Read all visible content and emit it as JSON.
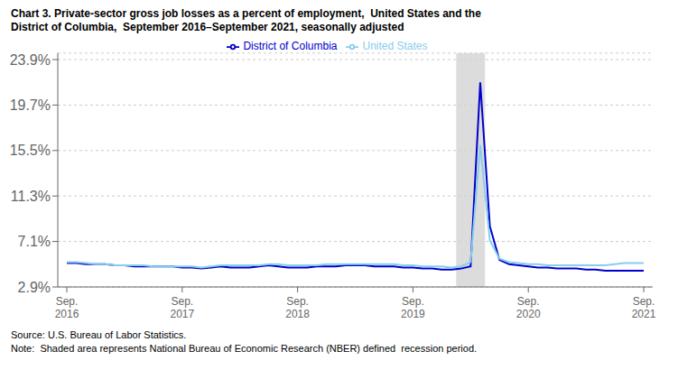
{
  "chart_data": {
    "type": "line",
    "title": "Chart 3. Private-sector gross job losses as a percent of employment,  United States and the\nDistrict of Columbia,  September 2016–September 2021, seasonally adjusted",
    "annotations": [
      "Source: U.S. Bureau of Labor Statistics.",
      "Note:  Shaded area represents National Bureau of Economic Research (NBER) defined  recession period."
    ],
    "categories": [
      "Sep.\n2016",
      null,
      null,
      null,
      null,
      null,
      null,
      null,
      null,
      null,
      null,
      null,
      "Sep.\n2017",
      null,
      null,
      null,
      null,
      null,
      null,
      null,
      null,
      null,
      null,
      null,
      "Sep.\n2018",
      null,
      null,
      null,
      null,
      null,
      null,
      null,
      null,
      null,
      null,
      null,
      "Sep.\n2019",
      null,
      null,
      null,
      null,
      null,
      null,
      null,
      null,
      null,
      null,
      null,
      "Sep.\n2020",
      null,
      null,
      null,
      null,
      null,
      null,
      null,
      null,
      null,
      null,
      null,
      "Sep.\n2021"
    ],
    "series": [
      {
        "name": "District of Columbia",
        "color": "#0000CD",
        "values": [
          5.1,
          5.1,
          5.0,
          5.0,
          5.0,
          4.9,
          4.9,
          4.8,
          4.8,
          4.8,
          4.8,
          4.8,
          4.7,
          4.7,
          4.6,
          4.7,
          4.8,
          4.7,
          4.7,
          4.7,
          4.8,
          4.9,
          4.8,
          4.7,
          4.7,
          4.7,
          4.8,
          4.8,
          4.8,
          4.9,
          4.9,
          4.9,
          4.8,
          4.8,
          4.8,
          4.7,
          4.7,
          4.6,
          4.6,
          4.5,
          4.5,
          4.6,
          4.8,
          21.8,
          8.5,
          5.4,
          5.0,
          4.9,
          4.8,
          4.7,
          4.7,
          4.6,
          4.6,
          4.6,
          4.5,
          4.5,
          4.4,
          4.4,
          4.4,
          4.4,
          4.4
        ]
      },
      {
        "name": "United States",
        "color": "#87CEEB",
        "values": [
          5.2,
          5.2,
          5.1,
          5.0,
          5.0,
          4.9,
          4.9,
          4.9,
          4.9,
          4.8,
          4.8,
          4.8,
          4.8,
          4.8,
          4.7,
          4.8,
          4.9,
          4.9,
          4.9,
          4.9,
          4.9,
          5.0,
          5.0,
          4.9,
          4.9,
          4.9,
          4.9,
          5.0,
          5.0,
          5.0,
          5.0,
          5.0,
          5.0,
          5.0,
          5.0,
          4.9,
          4.9,
          4.8,
          4.8,
          4.8,
          4.7,
          4.8,
          5.2,
          16.0,
          7.2,
          5.5,
          5.2,
          5.1,
          5.0,
          5.0,
          4.9,
          4.9,
          4.9,
          4.9,
          4.9,
          4.9,
          4.9,
          5.0,
          5.1,
          5.1,
          5.1
        ]
      }
    ],
    "recession": {
      "from": 40.5,
      "to": 43.5,
      "color": "#D3D3D3"
    },
    "ylim": [
      2.9,
      24.5
    ],
    "yticks": [
      {
        "value": 2.9,
        "label": "2.9%"
      },
      {
        "value": 7.1,
        "label": "7.1%"
      },
      {
        "value": 11.3,
        "label": "11.3%"
      },
      {
        "value": 15.5,
        "label": "15.5%"
      },
      {
        "value": 19.7,
        "label": "19.7%"
      },
      {
        "value": 23.9,
        "label": "23.9%"
      }
    ],
    "grid": true,
    "legend": "top"
  }
}
